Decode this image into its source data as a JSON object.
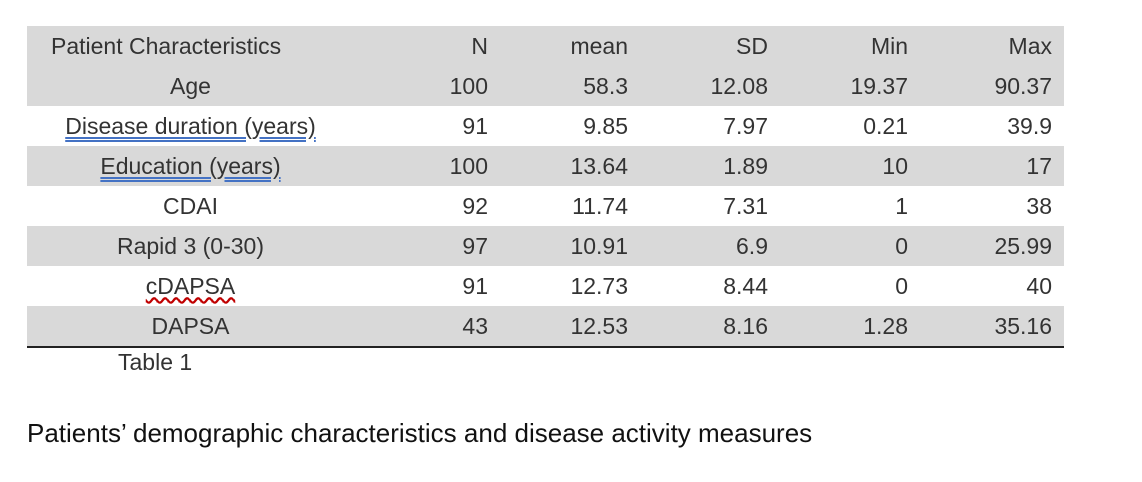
{
  "table": {
    "headers": [
      "Patient Characteristics",
      "N",
      "mean",
      "SD",
      "Min",
      "Max"
    ],
    "rows": [
      {
        "label": "Age",
        "n": "100",
        "mean": "58.3",
        "sd": "12.08",
        "min": "19.37",
        "max": "90.37"
      },
      {
        "label": "Disease duration (years)",
        "n": "91",
        "mean": "9.85",
        "sd": "7.97",
        "min": "0.21",
        "max": "39.9"
      },
      {
        "label": "Education (years)",
        "n": "100",
        "mean": "13.64",
        "sd": "1.89",
        "min": "10",
        "max": "17"
      },
      {
        "label": "CDAI",
        "n": "92",
        "mean": "11.74",
        "sd": "7.31",
        "min": "1",
        "max": "38"
      },
      {
        "label": "Rapid 3 (0-30)",
        "n": "97",
        "mean": "10.91",
        "sd": "6.9",
        "min": "0",
        "max": "25.99"
      },
      {
        "label": "cDAPSA",
        "n": "91",
        "mean": "12.73",
        "sd": "8.44",
        "min": "0",
        "max": "40"
      },
      {
        "label": "DAPSA",
        "n": "43",
        "mean": "12.53",
        "sd": "8.16",
        "min": "1.28",
        "max": "35.16"
      }
    ]
  },
  "caption": "Table 1",
  "description": "Patients’ demographic characteristics and disease activity measures"
}
